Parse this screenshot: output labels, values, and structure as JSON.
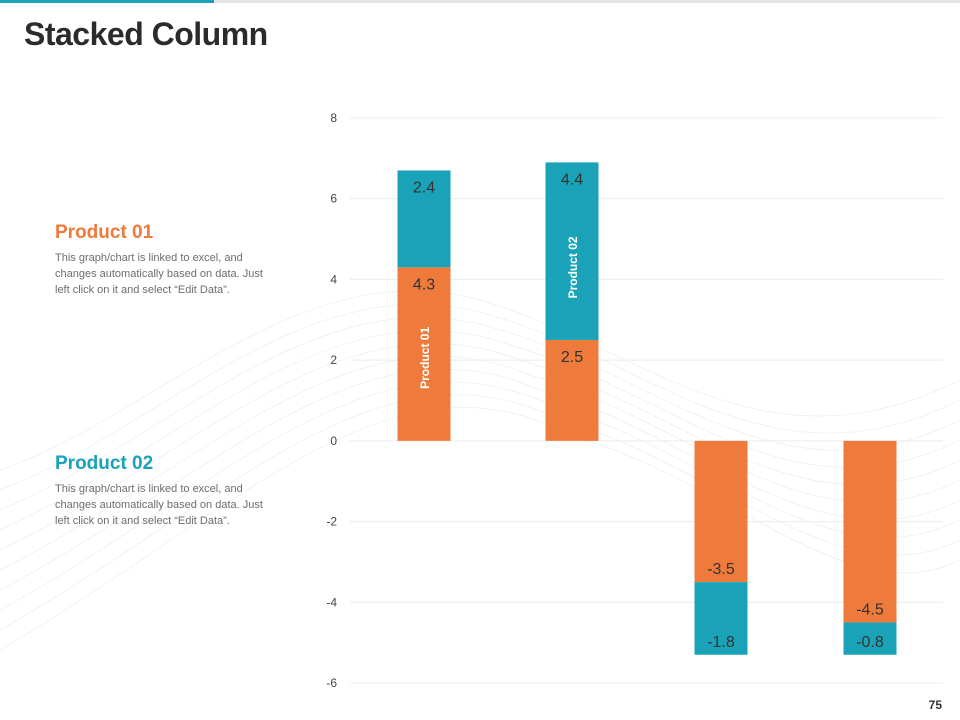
{
  "slide": {
    "title": "Stacked Column",
    "page_number": "75"
  },
  "legend": [
    {
      "title": "Product 01",
      "text": "This graph/chart is linked to excel, and changes automatically based on data. Just left click on it and select “Edit Data”."
    },
    {
      "title": "Product 02",
      "text": "This graph/chart is linked to excel, and changes automatically based on data. Just left click on it and select “Edit Data”."
    }
  ],
  "colors": {
    "product_01": "#ee7a3b",
    "product_02": "#1aa3b8",
    "gridline": "#ececec",
    "tick_label": "#444444",
    "accent": "#1aa3b8"
  },
  "chart_data": {
    "type": "bar",
    "stacked": true,
    "categories": [
      "",
      "",
      "",
      ""
    ],
    "series": [
      {
        "name": "Product 01",
        "values": [
          4.3,
          2.5,
          -3.5,
          -4.5
        ],
        "data_labels": [
          "4.3",
          "2.5",
          "-3.5",
          "-4.5"
        ]
      },
      {
        "name": "Product 02",
        "values": [
          2.4,
          4.4,
          -1.8,
          -0.8
        ],
        "data_labels": [
          "2.4",
          "4.4",
          "-1.8",
          "-0.8"
        ]
      }
    ],
    "inline_series_labels": [
      {
        "series": 0,
        "category": 0,
        "text": "Product 01"
      },
      {
        "series": 1,
        "category": 1,
        "text": "Product 02"
      }
    ],
    "ylim": [
      -6,
      8
    ],
    "yticks": [
      -6,
      -4,
      -2,
      0,
      2,
      4,
      6,
      8
    ],
    "ytick_labels": [
      "-6",
      "-4",
      "-2",
      "0",
      "2",
      "4",
      "6",
      "8"
    ],
    "grid": true,
    "legend": "left"
  }
}
